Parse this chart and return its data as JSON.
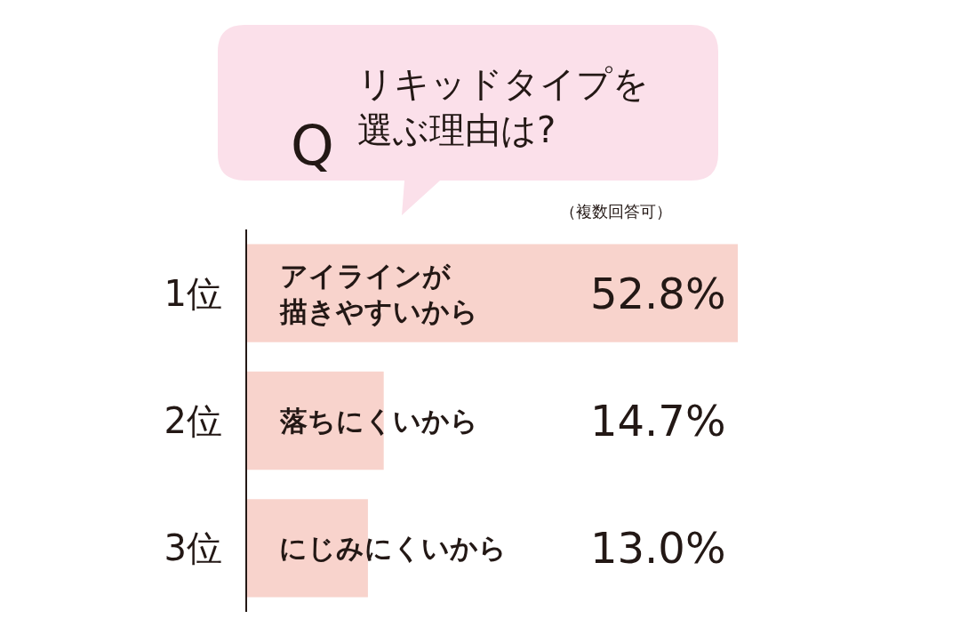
{
  "chart_data": {
    "type": "bar",
    "orientation": "horizontal",
    "title": "リキッドタイプを選ぶ理由は?",
    "subtitle": "（複数回答可）",
    "categories": [
      "1位",
      "2位",
      "3位"
    ],
    "values": [
      52.8,
      14.7,
      13.0
    ],
    "value_labels": [
      "52.8%",
      "14.7%",
      "13.0%"
    ],
    "color": "#f8d3cc",
    "annotations": [
      "Q",
      "アイラインが描きやすいから",
      "落ちにくいから",
      "にじみにくいから"
    ],
    "legend": false
  }
}
